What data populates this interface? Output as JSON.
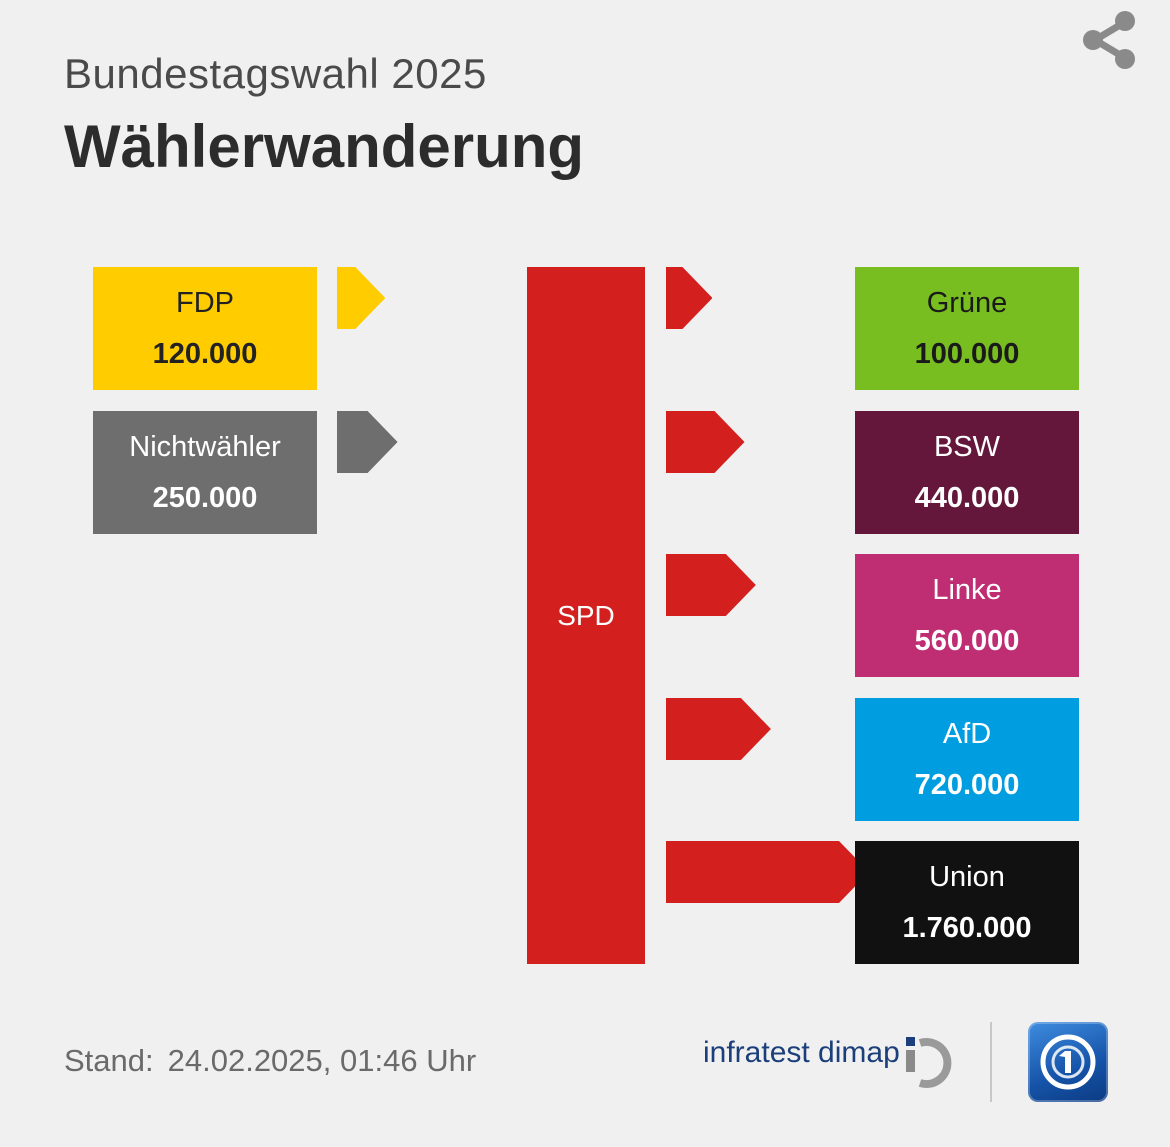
{
  "header": {
    "subtitle": "Bundestagswahl 2025",
    "title": "Wählerwanderung"
  },
  "chart_data": {
    "type": "bar",
    "center_party": "SPD",
    "center_color": "#d41f1f",
    "inflows": [
      {
        "name": "FDP",
        "value": 120000,
        "label": "120.000",
        "color": "#ffcc00",
        "text_color": "#222222"
      },
      {
        "name": "Nichtwähler",
        "value": 250000,
        "label": "250.000",
        "color": "#6e6e6e",
        "text_color": "#ffffff"
      }
    ],
    "outflows": [
      {
        "name": "Grüne",
        "value": 100000,
        "label": "100.000",
        "color": "#78be20",
        "text_color": "#1a1a1a"
      },
      {
        "name": "BSW",
        "value": 440000,
        "label": "440.000",
        "color": "#64173b",
        "text_color": "#ffffff"
      },
      {
        "name": "Linke",
        "value": 560000,
        "label": "560.000",
        "color": "#bf2d72",
        "text_color": "#ffffff"
      },
      {
        "name": "AfD",
        "value": 720000,
        "label": "720.000",
        "color": "#009ee0",
        "text_color": "#ffffff"
      },
      {
        "name": "Union",
        "value": 1760000,
        "label": "1.760.000",
        "color": "#111111",
        "text_color": "#ffffff"
      }
    ]
  },
  "footer": {
    "stand_label": "Stand:",
    "stand_date": "24.02.2025, 01:46 Uhr",
    "source": "infratest dimap"
  },
  "icons": {
    "share": "share-icon",
    "source_logo": "infratest-dimap-logo",
    "broadcaster_logo": "tagesschau-logo"
  }
}
